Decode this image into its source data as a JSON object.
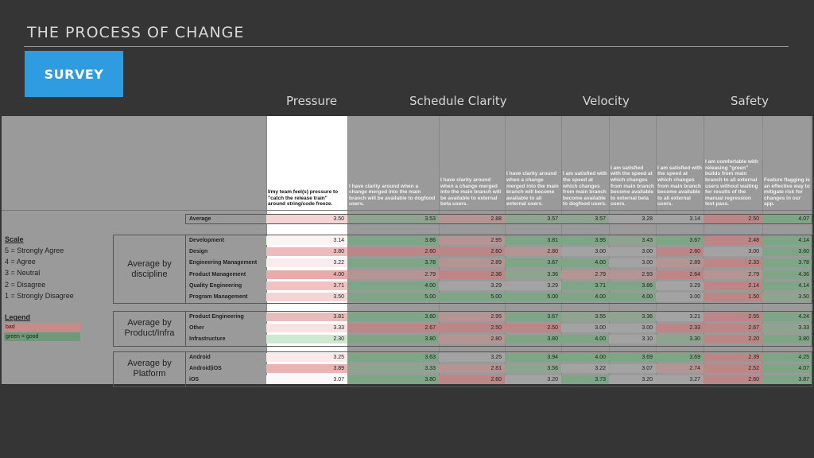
{
  "slide": {
    "title": "THE PROCESS OF CHANGE",
    "badge": "SURVEY"
  },
  "groups": [
    {
      "name": "Pressure",
      "x": 360
    },
    {
      "name": "Schedule Clarity",
      "x": 515
    },
    {
      "name": "Velocity",
      "x": 733
    },
    {
      "name": "Safety",
      "x": 919
    }
  ],
  "columns": [
    "I/my team feel(s) pressure to \"catch the release train\" around string/code freeze.",
    "I have clarity around when a change merged into the main branch will be available to dogfood users.",
    "I have clarity around when a change merged into the main branch will be available to external beta users.",
    "I have clarity around when a change merged into the main branch will become available to all external users.",
    "I am satisfied with the speed at which changes from main branch become available to dogfood users.",
    "I am satisfied with the speed at which changes from main branch become available to external beta users.",
    "I am satisfied with the speed at which changes from main branch become available to all external users.",
    "I am comfortable with releasing \"green\" builds from main branch to all external users without waiting for results of the manual regression test pass.",
    "Feature flagging is an effective way to mitigate risk for changes in our app."
  ],
  "average": {
    "label": "Average",
    "values": [
      "3.50",
      "3.53",
      "2.88",
      "3.57",
      "3.57",
      "3.28",
      "3.14",
      "2.50",
      "4.07"
    ]
  },
  "sections": [
    {
      "label": "Average by discipline",
      "rows": [
        {
          "label": "Development",
          "values": [
            "3.14",
            "3.86",
            "2.95",
            "3.81",
            "3.95",
            "3.43",
            "3.67",
            "2.48",
            "4.14"
          ]
        },
        {
          "label": "Design",
          "values": [
            "3.80",
            "2.60",
            "2.60",
            "2.80",
            "3.00",
            "3.00",
            "2.60",
            "3.00",
            "3.60"
          ]
        },
        {
          "label": "Engineering Management",
          "values": [
            "3.22",
            "3.78",
            "2.89",
            "3.67",
            "4.00",
            "3.00",
            "2.89",
            "2.33",
            "3.78"
          ]
        },
        {
          "label": "Product Management",
          "values": [
            "4.00",
            "2.79",
            "2.36",
            "3.36",
            "2.79",
            "2.93",
            "2.64",
            "2.79",
            "4.36"
          ]
        },
        {
          "label": "Quality Engineering",
          "values": [
            "3.71",
            "4.00",
            "3.29",
            "3.29",
            "3.71",
            "3.86",
            "3.29",
            "2.14",
            "4.14"
          ]
        },
        {
          "label": "Program Management",
          "values": [
            "3.50",
            "5.00",
            "5.00",
            "5.00",
            "4.00",
            "4.00",
            "3.00",
            "1.50",
            "3.50"
          ]
        }
      ]
    },
    {
      "label": "Average by Product/Infra",
      "rows": [
        {
          "label": "Product Engineering",
          "values": [
            "3.81",
            "3.60",
            "2.95",
            "3.67",
            "3.55",
            "3.36",
            "3.21",
            "2.55",
            "4.24"
          ]
        },
        {
          "label": "Other",
          "values": [
            "3.33",
            "2.67",
            "2.50",
            "2.50",
            "3.00",
            "3.00",
            "2.33",
            "2.67",
            "3.33"
          ]
        },
        {
          "label": "Infrastructure",
          "values": [
            "2.30",
            "3.80",
            "2.80",
            "3.80",
            "4.00",
            "3.10",
            "3.30",
            "2.20",
            "3.80"
          ]
        }
      ]
    },
    {
      "label": "Average by Platform",
      "rows": [
        {
          "label": "Android",
          "values": [
            "3.25",
            "3.63",
            "3.25",
            "3.94",
            "4.00",
            "3.69",
            "3.69",
            "2.39",
            "4.25"
          ]
        },
        {
          "label": "Android|iOS",
          "values": [
            "3.89",
            "3.33",
            "2.81",
            "3.56",
            "3.22",
            "3.07",
            "2.74",
            "2.52",
            "4.07"
          ]
        },
        {
          "label": "iOS",
          "values": [
            "3.07",
            "3.80",
            "2.60",
            "3.20",
            "3.73",
            "3.20",
            "3.27",
            "2.60",
            "3.87"
          ]
        }
      ]
    }
  ],
  "scale": {
    "title": "Scale",
    "items": [
      "5 = Strongly Agree",
      "4 = Agree",
      "3 = Neutral",
      "2 = Disagree",
      "1 = Strongly Disagree"
    ]
  },
  "legend": {
    "title": "Legend",
    "bad": "bad",
    "good": "green = good"
  },
  "colors": {
    "bad": "#c98a8a",
    "good": "#6f9a77",
    "neutral": "#a3a3a3"
  }
}
